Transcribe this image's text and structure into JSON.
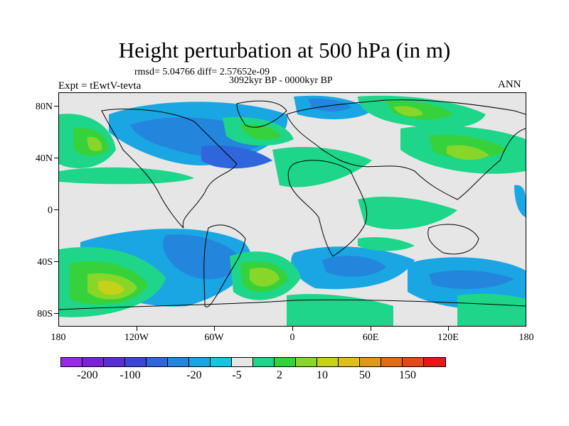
{
  "title": "Height perturbation at 500 hPa (in m)",
  "stats_line": "rmsd= 5.04766 diff= 2.57652e-09",
  "experiment": "Expt = tEwtV-tevta",
  "period": "3092kyr BP - 0000kyr BP",
  "season": "ANN",
  "lat_labels": [
    "80N",
    "40N",
    "0",
    "40S",
    "80S"
  ],
  "lat_values": [
    80,
    40,
    0,
    -40,
    -80
  ],
  "lon_labels": [
    "180",
    "120W",
    "60W",
    "0",
    "60E",
    "120E",
    "180"
  ],
  "lon_values": [
    -180,
    -120,
    -60,
    0,
    60,
    120,
    180
  ],
  "lat_range": [
    -90,
    90
  ],
  "lon_range": [
    -180,
    180
  ],
  "colorbar": {
    "colors": [
      "#9a28e8",
      "#7a22d8",
      "#5a2ed2",
      "#3c46d6",
      "#2f66dc",
      "#2386dc",
      "#1aa6e2",
      "#14c4e0",
      "#e6e6e6",
      "#1ed68a",
      "#36d23c",
      "#88d628",
      "#c6d21a",
      "#e0be18",
      "#e09818",
      "#e06c18",
      "#e44818",
      "#e81818"
    ],
    "labels": [
      "-200",
      "-100",
      "-20",
      "-5",
      "2",
      "10",
      "50",
      "150"
    ],
    "label_boundaries": [
      1,
      3,
      6,
      8,
      10,
      12,
      14,
      16
    ]
  }
}
